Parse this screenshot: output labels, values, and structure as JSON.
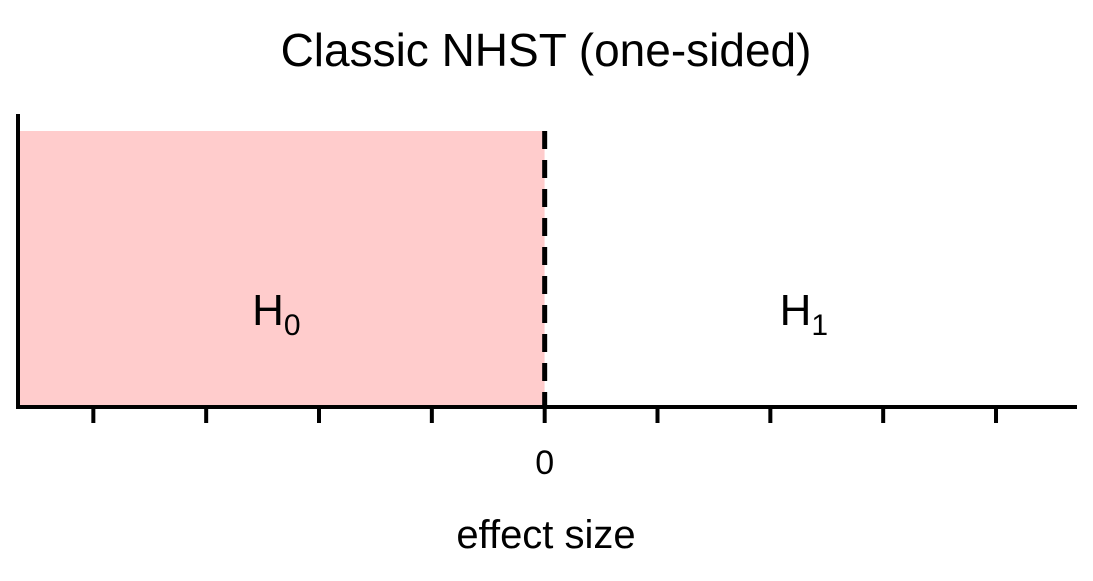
{
  "chart_data": {
    "type": "area",
    "title": "Classic NHST (one-sided)",
    "xlabel": "effect size",
    "ylabel": "",
    "xlim": [
      -4.65,
      4.7
    ],
    "x_ticks": [
      -4,
      -3,
      -2,
      -1,
      0,
      1,
      2,
      3,
      4
    ],
    "x_tick_labels": [
      {
        "value": 0,
        "label": "0"
      }
    ],
    "regions": [
      {
        "name": "H0",
        "label_main": "H",
        "label_sub": "0",
        "x_from": -4.65,
        "x_to": 0,
        "fill": "#ffcccc"
      },
      {
        "name": "H1",
        "label_main": "H",
        "label_sub": "1",
        "x_from": 0,
        "x_to": 4.7,
        "fill": "#ffffff"
      }
    ],
    "boundary": {
      "x": 0,
      "style": "dashed"
    },
    "grid": false
  }
}
